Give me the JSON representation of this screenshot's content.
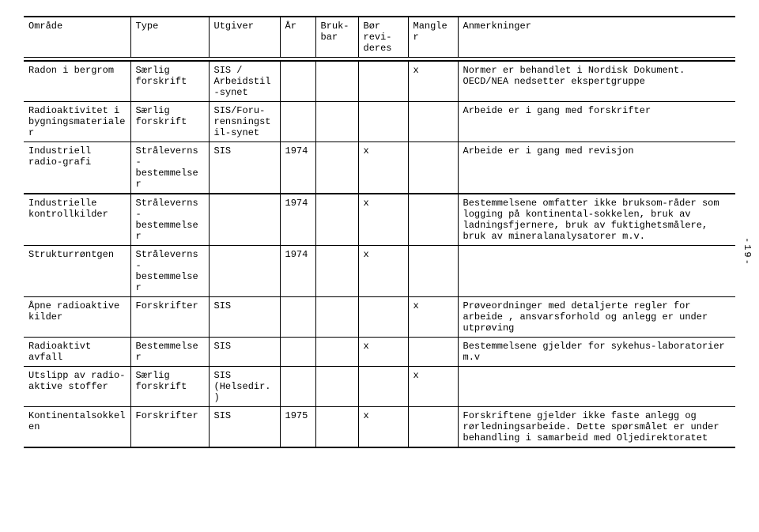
{
  "headers": {
    "c0": "Område",
    "c1": "Type",
    "c2": "Utgiver",
    "c3": "År",
    "c4": "Bruk-\nbar",
    "c5": "Bør revi-\nderes",
    "c6": "Mangler",
    "c7": "Anmerkninger"
  },
  "rows": [
    {
      "c0": "Radon i bergrom",
      "c1": "Særlig forskrift",
      "c2": "SIS / Arbeidstil-synet",
      "c3": "",
      "c4": "",
      "c5": "",
      "c6": "x",
      "c7": "Normer er behandlet i Nordisk Dokument. OECD/NEA nedsetter ekspertgruppe"
    },
    {
      "c0": "Radioaktivitet i bygningsmaterialer",
      "c1": "Særlig forskrift",
      "c2": "SIS/Foru-rensningstil-synet",
      "c3": "",
      "c4": "",
      "c5": "",
      "c6": "",
      "c7": "Arbeide er i gang med forskrifter"
    },
    {
      "c0": "Industriell radio-grafi",
      "c1": "Stråleverns-bestemmelser",
      "c2": "SIS",
      "c3": "1974",
      "c4": "",
      "c5": "x",
      "c6": "",
      "c7": "Arbeide er i gang med revisjon"
    },
    {
      "c0": "Industrielle kontrollkilder",
      "c1": "Stråleverns-bestemmelser",
      "c2": "",
      "c3": "1974",
      "c4": "",
      "c5": "x",
      "c6": "",
      "c7": "Bestemmelsene omfatter ikke bruksom-råder som logging på kontinental-sokkelen, bruk av ladningsfjernere, bruk av fuktighetsmålere, bruk av mineralanalysatorer m.v."
    },
    {
      "c0": "Strukturrøntgen",
      "c1": "Stråleverns-bestemmelser",
      "c2": "",
      "c3": "1974",
      "c4": "",
      "c5": "x",
      "c6": "",
      "c7": ""
    },
    {
      "c0": "Åpne radioaktive kilder",
      "c1": "Forskrifter",
      "c2": "SIS",
      "c3": "",
      "c4": "",
      "c5": "",
      "c6": "x",
      "c7": "Prøveordninger med detaljerte regler for arbeide , ansvarsforhold og anlegg   er   under utprøving"
    },
    {
      "c0": "Radioaktivt avfall",
      "c1": "Bestemmelser",
      "c2": "SIS",
      "c3": "",
      "c4": "",
      "c5": "x",
      "c6": "",
      "c7": "Bestemmelsene gjelder for sykehus-laboratorier m.v"
    },
    {
      "c0": "Utslipp av radio-aktive stoffer",
      "c1": "Særlig forskrift",
      "c2": "SIS (Helsedir.)",
      "c3": "",
      "c4": "",
      "c5": "",
      "c6": "x",
      "c7": ""
    },
    {
      "c0": "Kontinentalsokkelen",
      "c1": "Forskrifter",
      "c2": "SIS",
      "c3": "1975",
      "c4": "",
      "c5": "x",
      "c6": "",
      "c7": "Forskriftene gjelder ikke faste anlegg og rørledningsarbeide. Dette spørsmålet er under behandling i samarbeid med Oljedirektoratet"
    }
  ],
  "side_label": "-19-",
  "col_widths": [
    "15%",
    "11%",
    "10%",
    "5%",
    "6%",
    "7%",
    "7%",
    "39%"
  ]
}
